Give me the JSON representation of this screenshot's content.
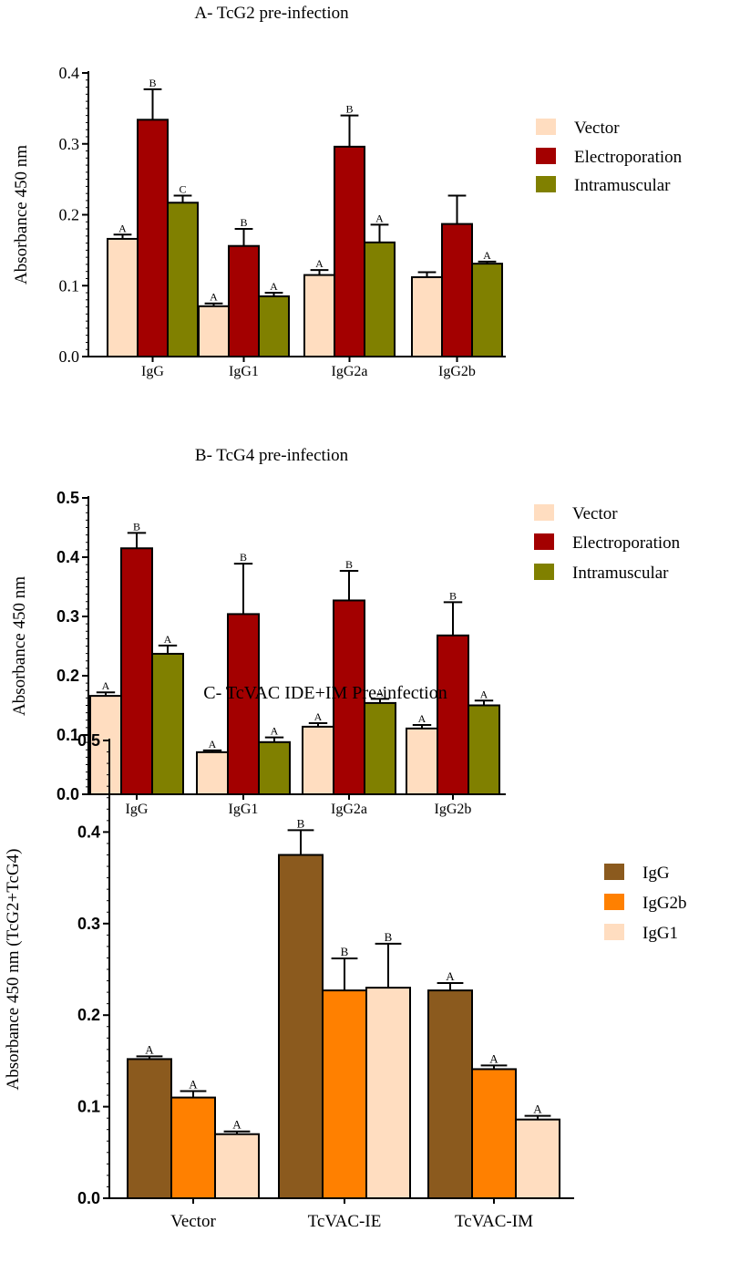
{
  "colors": {
    "Vector": "#FFDDC0",
    "Electroporation": "#A30000",
    "Intramuscular": "#808000",
    "IgG": "#8B5A1E",
    "IgG2b": "#FF8000",
    "IgG1": "#FFDDC0"
  },
  "chart_data": [
    {
      "type": "bar",
      "title": "A- TcG2 pre-infection",
      "ylabel": "Absorbance 450 nm",
      "categories": [
        "IgG",
        "IgG1",
        "IgG2a",
        "IgG2b"
      ],
      "ylim": [
        0,
        0.4
      ],
      "yticks": [
        "0.0",
        "0.1",
        "0.2",
        "0.3",
        "0.4"
      ],
      "legend_position": "right",
      "grid": false,
      "series": [
        {
          "name": "Vector",
          "values": [
            0.166,
            0.071,
            0.115,
            0.112
          ],
          "errors": [
            0.006,
            0.004,
            0.007,
            0.007
          ],
          "labels": [
            "A",
            "A",
            "A",
            ""
          ]
        },
        {
          "name": "Electroporation",
          "values": [
            0.334,
            0.156,
            0.296,
            0.187
          ],
          "errors": [
            0.043,
            0.024,
            0.044,
            0.04
          ],
          "labels": [
            "B",
            "B",
            "B",
            ""
          ]
        },
        {
          "name": "Intramuscular",
          "values": [
            0.217,
            0.085,
            0.161,
            0.131
          ],
          "errors": [
            0.01,
            0.005,
            0.025,
            0.003
          ],
          "labels": [
            "C",
            "A",
            "A",
            "A"
          ]
        }
      ]
    },
    {
      "type": "bar",
      "title": "B- TcG4 pre-infection",
      "ylabel": "Absorbance 450 nm",
      "categories": [
        "IgG",
        "IgG1",
        "IgG2a",
        "IgG2b"
      ],
      "ylim": [
        0,
        0.5
      ],
      "yticks": [
        "0.0",
        "0.1",
        "0.2",
        "0.3",
        "0.4",
        "0.5"
      ],
      "legend_position": "right",
      "grid": false,
      "series": [
        {
          "name": "Vector",
          "values": [
            0.166,
            0.071,
            0.114,
            0.111
          ],
          "errors": [
            0.006,
            0.003,
            0.006,
            0.006
          ],
          "labels": [
            "A",
            "A",
            "A",
            "A"
          ]
        },
        {
          "name": "Electroporation",
          "values": [
            0.415,
            0.304,
            0.327,
            0.268
          ],
          "errors": [
            0.026,
            0.085,
            0.05,
            0.056
          ],
          "labels": [
            "B",
            "B",
            "B",
            "B"
          ]
        },
        {
          "name": "Intramuscular",
          "values": [
            0.237,
            0.088,
            0.154,
            0.15
          ],
          "errors": [
            0.014,
            0.008,
            0.007,
            0.008
          ],
          "labels": [
            "A",
            "A",
            "A",
            "A"
          ]
        }
      ]
    },
    {
      "type": "bar",
      "title": "C- TcVAC IDE+IM Pre-infection",
      "ylabel": "Absorbance 450 nm (TcG2+TcG4)",
      "categories": [
        "Vector",
        "TcVAC-IE",
        "TcVAC-IM"
      ],
      "ylim": [
        0,
        0.5
      ],
      "yticks": [
        "0.0",
        "0.1",
        "0.2",
        "0.3",
        "0.4",
        "0.5"
      ],
      "legend_position": "right",
      "grid": false,
      "series": [
        {
          "name": "IgG",
          "values": [
            0.152,
            0.375,
            0.227
          ],
          "errors": [
            0.003,
            0.027,
            0.008
          ],
          "labels": [
            "A",
            "B",
            "A"
          ]
        },
        {
          "name": "IgG2b",
          "values": [
            0.11,
            0.227,
            0.141
          ],
          "errors": [
            0.007,
            0.035,
            0.004
          ],
          "labels": [
            "A",
            "B",
            "A"
          ]
        },
        {
          "name": "IgG1",
          "values": [
            0.07,
            0.23,
            0.086
          ],
          "errors": [
            0.003,
            0.048,
            0.004
          ],
          "labels": [
            "A",
            "B",
            "A"
          ]
        }
      ]
    }
  ]
}
